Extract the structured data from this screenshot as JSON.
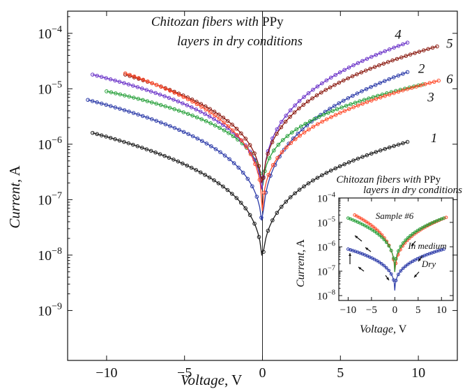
{
  "chart_data": [
    {
      "type": "line",
      "yscale": "log",
      "title_line1": "Chitozan fibers with",
      "title_line1_upright": "PPy",
      "title_line2": "layers in dry conditions",
      "xlabel": "Voltage",
      "xlabel_unit": ", V",
      "ylabel": "Current",
      "ylabel_unit": ", A",
      "xlim": [
        -12.5,
        12.5
      ],
      "ylim_exp": [
        -9.9,
        -3.6
      ],
      "x_ticks": [
        -10,
        -5,
        0,
        5,
        10
      ],
      "x_tick_labels": [
        "−10",
        "−5",
        "0",
        "5",
        "10"
      ],
      "y_tick_exps": [
        -9,
        -8,
        -7,
        -6,
        -5,
        -4
      ],
      "y_tick_base": "10",
      "y_tick_sups": [
        "−9",
        "−8",
        "−7",
        "−6",
        "−5",
        "−4"
      ],
      "series": [
        {
          "label": "1",
          "color": "#1a1a1a",
          "label_x": 11.0,
          "label_y": 1.3e-06,
          "neg_x": -10.9,
          "neg_y": 1.6e-06,
          "zero_y": 3e-09,
          "pos_x": 9.3,
          "pos_y": 1.1e-06
        },
        {
          "label": "2",
          "color": "#2b3aa8",
          "label_x": 10.2,
          "label_y": 2.3e-05,
          "neg_x": -11.2,
          "neg_y": 6.3e-06,
          "zero_y": 1.2e-08,
          "pos_x": 9.3,
          "pos_y": 2e-05
        },
        {
          "label": "3",
          "color": "#27a03a",
          "label_x": 10.8,
          "label_y": 7e-06,
          "neg_x": -10.0,
          "neg_y": 9e-06,
          "zero_y": 8e-08,
          "pos_x": 10.3,
          "pos_y": 1.2e-05
        },
        {
          "label": "4",
          "color": "#6a32c8",
          "label_x": 8.7,
          "label_y": 9.5e-05,
          "neg_x": -10.9,
          "neg_y": 1.8e-05,
          "zero_y": 5e-08,
          "pos_x": 9.3,
          "pos_y": 6.8e-05
        },
        {
          "label": "5",
          "color": "#8a1a10",
          "label_x": 12.0,
          "label_y": 6.5e-05,
          "neg_x": -8.8,
          "neg_y": 1.8e-05,
          "zero_y": 6e-08,
          "pos_x": 11.2,
          "pos_y": 5.8e-05
        },
        {
          "label": "6",
          "color": "#ff4a2a",
          "label_x": 12.0,
          "label_y": 1.5e-05,
          "neg_x": -8.8,
          "neg_y": 1.9e-05,
          "zero_y": 3e-08,
          "pos_x": 11.3,
          "pos_y": 1.4e-05
        }
      ]
    },
    {
      "type": "line",
      "yscale": "log",
      "title_line1": "Chitozan fibers with",
      "title_line1_upright": "PPy",
      "title_line2": "layers in dry conditions",
      "xlabel": "Voltage",
      "xlabel_unit": ", V",
      "ylabel": "Current",
      "ylabel_unit": ", A",
      "xlim": [
        -12,
        12.5
      ],
      "ylim_exp": [
        -8.2,
        -4.0
      ],
      "x_ticks": [
        -10,
        -5,
        0,
        5,
        10
      ],
      "x_tick_labels": [
        "−10",
        "−5",
        "0",
        "5",
        "10"
      ],
      "y_tick_exps": [
        -8,
        -7,
        -6,
        -5,
        -4
      ],
      "y_tick_base": "10",
      "y_tick_sups": [
        "−8",
        "−7",
        "−6",
        "−5",
        "−4"
      ],
      "annotations": [
        "Sample #6",
        "In medium",
        "Dry"
      ],
      "series": [
        {
          "color": "#ff4a2a",
          "neg_x": -8.6,
          "neg_y": 2e-05,
          "zero_y": 3e-08,
          "pos_x": 11.0,
          "pos_y": 1.6e-05
        },
        {
          "color": "#27a03a",
          "neg_x": -10.0,
          "neg_y": 1.5e-05,
          "zero_y": 5e-08,
          "pos_x": 10.5,
          "pos_y": 1.5e-05
        },
        {
          "color": "#2b3aa8",
          "neg_x": -10.0,
          "neg_y": 8e-07,
          "zero_y": 1e-08,
          "pos_x": 10.5,
          "pos_y": 8e-07
        }
      ]
    }
  ]
}
